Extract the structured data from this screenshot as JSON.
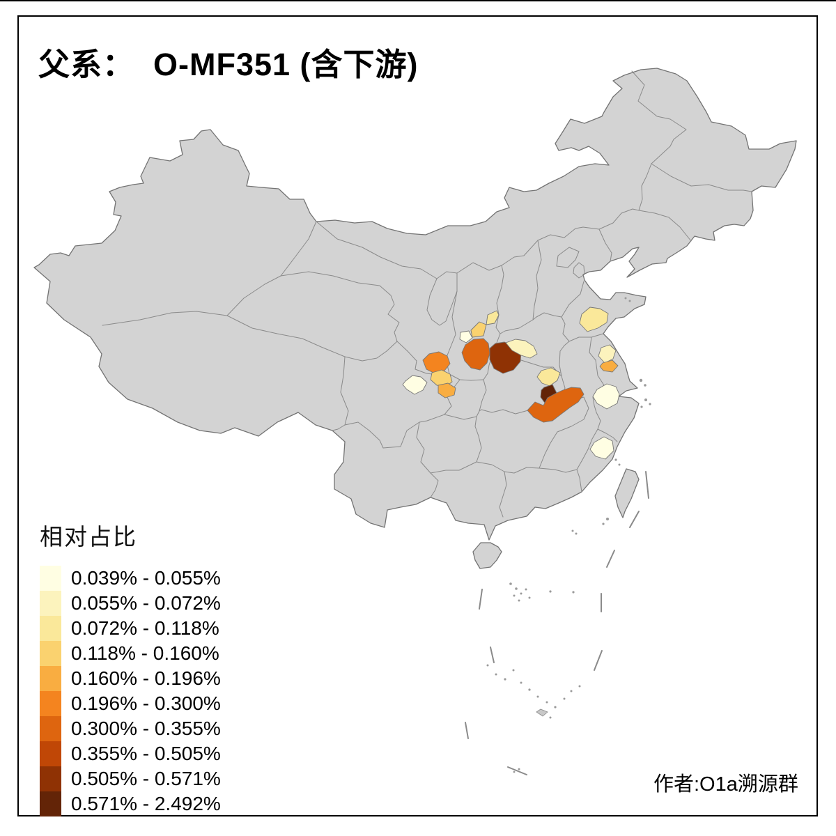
{
  "title": "父系：  O-MF351 (含下游)",
  "author": "作者:O1a溯源群",
  "legend": {
    "title": "相对占比",
    "classes": [
      {
        "label": "0.039% - 0.055%",
        "color": "#FFFEE3"
      },
      {
        "label": "0.055% - 0.072%",
        "color": "#FCF3BD"
      },
      {
        "label": "0.072% - 0.118%",
        "color": "#FAE89A"
      },
      {
        "label": "0.118% - 0.160%",
        "color": "#FAD26F"
      },
      {
        "label": "0.160% - 0.196%",
        "color": "#F9AD41"
      },
      {
        "label": "0.196% - 0.300%",
        "color": "#F4841F"
      },
      {
        "label": "0.300% - 0.355%",
        "color": "#DE650F"
      },
      {
        "label": "0.355% - 0.505%",
        "color": "#C04706"
      },
      {
        "label": "0.505% - 0.571%",
        "color": "#8F3204"
      },
      {
        "label": "0.571% - 2.492%",
        "color": "#632407"
      }
    ]
  },
  "map": {
    "land_color": "#D3D3D3",
    "border_color": "#8A8A8A",
    "outline_color": "#737373",
    "sea_color": "#FFFFFF",
    "regions": [
      {
        "id": "r01",
        "class": 3
      },
      {
        "id": "r02",
        "class": 4
      },
      {
        "id": "r03",
        "class": 1
      },
      {
        "id": "r04",
        "class": 7
      },
      {
        "id": "r05",
        "class": 9
      },
      {
        "id": "r06",
        "class": 2
      },
      {
        "id": "r07",
        "class": 6
      },
      {
        "id": "r08",
        "class": 4
      },
      {
        "id": "r09",
        "class": 5
      },
      {
        "id": "r10",
        "class": 1
      },
      {
        "id": "r11",
        "class": 3
      },
      {
        "id": "r12",
        "class": 2
      },
      {
        "id": "r13",
        "class": 5
      },
      {
        "id": "r14",
        "class": 3
      },
      {
        "id": "r15",
        "class": 10
      },
      {
        "id": "r16",
        "class": 7
      },
      {
        "id": "r17",
        "class": 1
      },
      {
        "id": "r18",
        "class": 1
      }
    ]
  }
}
